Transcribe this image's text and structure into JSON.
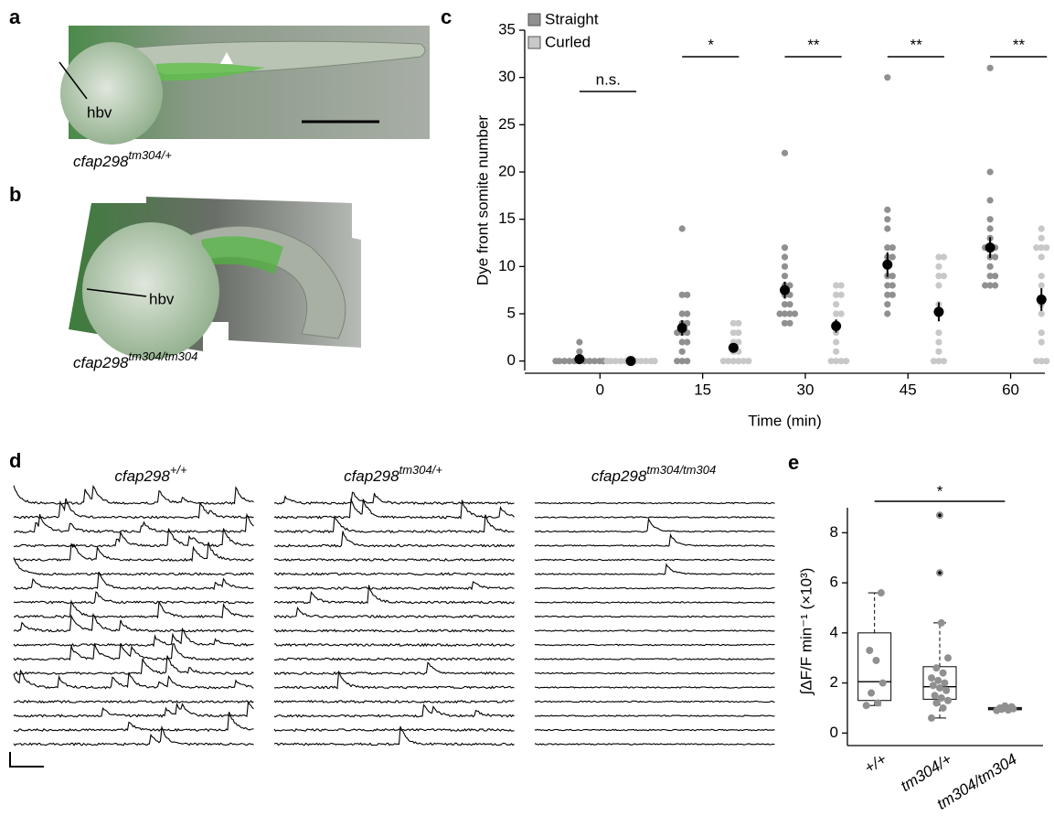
{
  "panels": {
    "a": {
      "label": "a",
      "annotation": "hbv",
      "caption": {
        "base": "cfap298",
        "sup": "tm304/+"
      }
    },
    "b": {
      "label": "b",
      "annotation": "hbv",
      "caption": {
        "base": "cfap298",
        "sup": "tm304/tm304"
      }
    },
    "c": {
      "label": "c"
    },
    "d": {
      "label": "d",
      "titles": [
        {
          "base": "cfap298",
          "sup": "+/+"
        },
        {
          "base": "cfap298",
          "sup": "tm304/+"
        },
        {
          "base": "cfap298",
          "sup": "tm304/tm304"
        }
      ]
    },
    "e": {
      "label": "e"
    }
  },
  "chart_data": [
    {
      "type": "dot",
      "x_label": "Time (min)",
      "y_label": "Dye front somite number",
      "x": [
        0,
        15,
        30,
        45,
        60
      ],
      "xlim": [
        -11,
        65
      ],
      "xticks": [
        0,
        15,
        30,
        45,
        60
      ],
      "ylim": [
        -1,
        35
      ],
      "yticks": [
        0,
        5,
        10,
        15,
        20,
        25,
        30,
        35
      ],
      "mean_color": "#000000",
      "series": [
        {
          "name": "Straight",
          "color": "#909090",
          "values": [
            0.2,
            3.5,
            7.5,
            10.2,
            12
          ],
          "errors": [
            0.3,
            0.8,
            0.9,
            1.3,
            1.1
          ],
          "points": [
            [
              0,
              0,
              0,
              0,
              0,
              0,
              0,
              0,
              0,
              0,
              0,
              0,
              1,
              2
            ],
            [
              0,
              0,
              0,
              1,
              2,
              2,
              3,
              3,
              3,
              4,
              4,
              5,
              5,
              7,
              7,
              14
            ],
            [
              4,
              4,
              5,
              5,
              5,
              5,
              6,
              6,
              7,
              7,
              8,
              8,
              9,
              10,
              11,
              12,
              22
            ],
            [
              5,
              6,
              7,
              7,
              8,
              8,
              9,
              9,
              10,
              11,
              11,
              12,
              12,
              14,
              15,
              16,
              30
            ],
            [
              8,
              8,
              8,
              9,
              9,
              10,
              11,
              11,
              12,
              12,
              12,
              13,
              14,
              15,
              17,
              20,
              31
            ]
          ]
        },
        {
          "name": "Curled",
          "color": "#c8c8c8",
          "values": [
            0,
            1.4,
            3.7,
            5.2,
            6.5
          ],
          "errors": [
            0,
            0.4,
            0.7,
            1.0,
            1.2
          ],
          "points": [
            [
              0,
              0,
              0,
              0,
              0,
              0,
              0,
              0,
              0,
              0,
              0,
              0
            ],
            [
              0,
              0,
              0,
              0,
              0,
              0,
              1,
              1,
              2,
              2,
              3,
              3,
              4,
              4
            ],
            [
              0,
              0,
              0,
              0,
              1,
              2,
              3,
              4,
              5,
              5,
              6,
              7,
              7,
              8,
              8
            ],
            [
              0,
              0,
              0,
              1,
              2,
              3,
              5,
              6,
              8,
              9,
              9,
              10,
              11,
              11
            ],
            [
              0,
              0,
              0,
              2,
              3,
              5,
              6,
              8,
              9,
              11,
              12,
              12,
              12,
              13,
              14
            ]
          ]
        }
      ],
      "significance": [
        "n.s.",
        "*",
        "**",
        "**",
        "**"
      ]
    },
    {
      "type": "box",
      "y_label": "∫ΔF/F min⁻¹ (×10³)",
      "categories": [
        "+/+",
        "tm304/+",
        "tm304/tm304"
      ],
      "ylim": [
        -0.5,
        9
      ],
      "yticks": [
        0,
        2,
        4,
        6,
        8
      ],
      "color": "#909090",
      "boxes": [
        {
          "min": 1.1,
          "q1": 1.3,
          "median": 2.05,
          "q3": 4.0,
          "max": 5.6,
          "outliers": [],
          "points": [
            1.1,
            1.2,
            1.6,
            2.0,
            2.9,
            3.3,
            5.6
          ]
        },
        {
          "min": 0.6,
          "q1": 1.35,
          "median": 1.85,
          "q3": 2.65,
          "max": 4.4,
          "outliers": [
            6.4,
            8.7
          ],
          "points": [
            0.6,
            1.0,
            1.2,
            1.3,
            1.4,
            1.5,
            1.7,
            1.8,
            1.9,
            2.0,
            2.1,
            2.2,
            2.4,
            2.6,
            3.0,
            4.4
          ]
        },
        {
          "min": 0.88,
          "q1": 0.93,
          "median": 0.97,
          "q3": 1.02,
          "max": 1.08,
          "outliers": [],
          "points": [
            0.9,
            0.92,
            0.95,
            0.97,
            1.0,
            1.0,
            1.05,
            1.08
          ]
        }
      ],
      "significance": "*"
    }
  ]
}
